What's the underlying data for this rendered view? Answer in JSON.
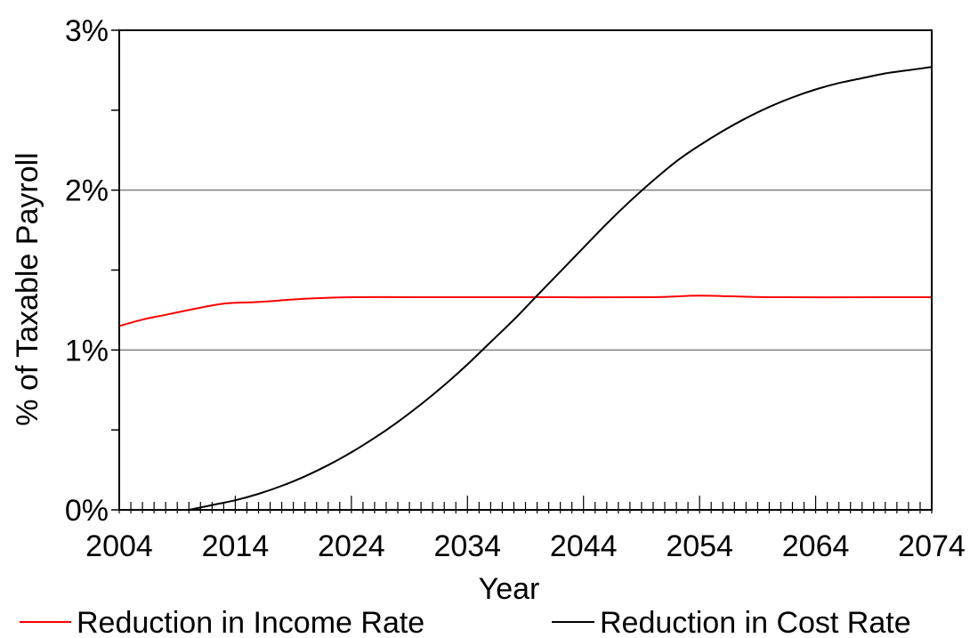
{
  "chart_data": {
    "type": "line",
    "xlabel": "Year",
    "ylabel": "% of Taxable Payroll",
    "xlim": [
      2004,
      2074
    ],
    "ylim": [
      0,
      3
    ],
    "x_ticks": [
      2004,
      2014,
      2024,
      2034,
      2044,
      2054,
      2064,
      2074
    ],
    "x_tick_labels": [
      "2004",
      "2014",
      "2024",
      "2034",
      "2044",
      "2054",
      "2064",
      "2074"
    ],
    "y_ticks": [
      0,
      1,
      2,
      3
    ],
    "y_tick_labels": [
      "0%",
      "1%",
      "2%",
      "3%"
    ],
    "grid": "horizontal",
    "legend_position": "bottom",
    "series": [
      {
        "name": "Reduction in Income Rate",
        "color": "#ff0000",
        "x": [
          2004,
          2006,
          2008,
          2010,
          2013,
          2016,
          2020,
          2024,
          2030,
          2040,
          2050,
          2054,
          2060,
          2070,
          2074
        ],
        "y": [
          1.15,
          1.19,
          1.22,
          1.25,
          1.29,
          1.3,
          1.32,
          1.33,
          1.33,
          1.33,
          1.33,
          1.34,
          1.33,
          1.33,
          1.33
        ]
      },
      {
        "name": "Reduction in Cost Rate",
        "color": "#000000",
        "x": [
          2010,
          2012,
          2014,
          2016,
          2018,
          2020,
          2022,
          2024,
          2026,
          2028,
          2030,
          2032,
          2034,
          2036,
          2038,
          2040,
          2042,
          2044,
          2046,
          2048,
          2050,
          2052,
          2054,
          2056,
          2058,
          2060,
          2062,
          2064,
          2066,
          2068,
          2070,
          2072,
          2074
        ],
        "y": [
          0.0,
          0.03,
          0.06,
          0.1,
          0.15,
          0.21,
          0.28,
          0.36,
          0.45,
          0.55,
          0.66,
          0.78,
          0.91,
          1.05,
          1.19,
          1.34,
          1.49,
          1.64,
          1.79,
          1.93,
          2.06,
          2.18,
          2.28,
          2.37,
          2.45,
          2.52,
          2.58,
          2.63,
          2.67,
          2.7,
          2.73,
          2.75,
          2.77
        ]
      }
    ]
  }
}
